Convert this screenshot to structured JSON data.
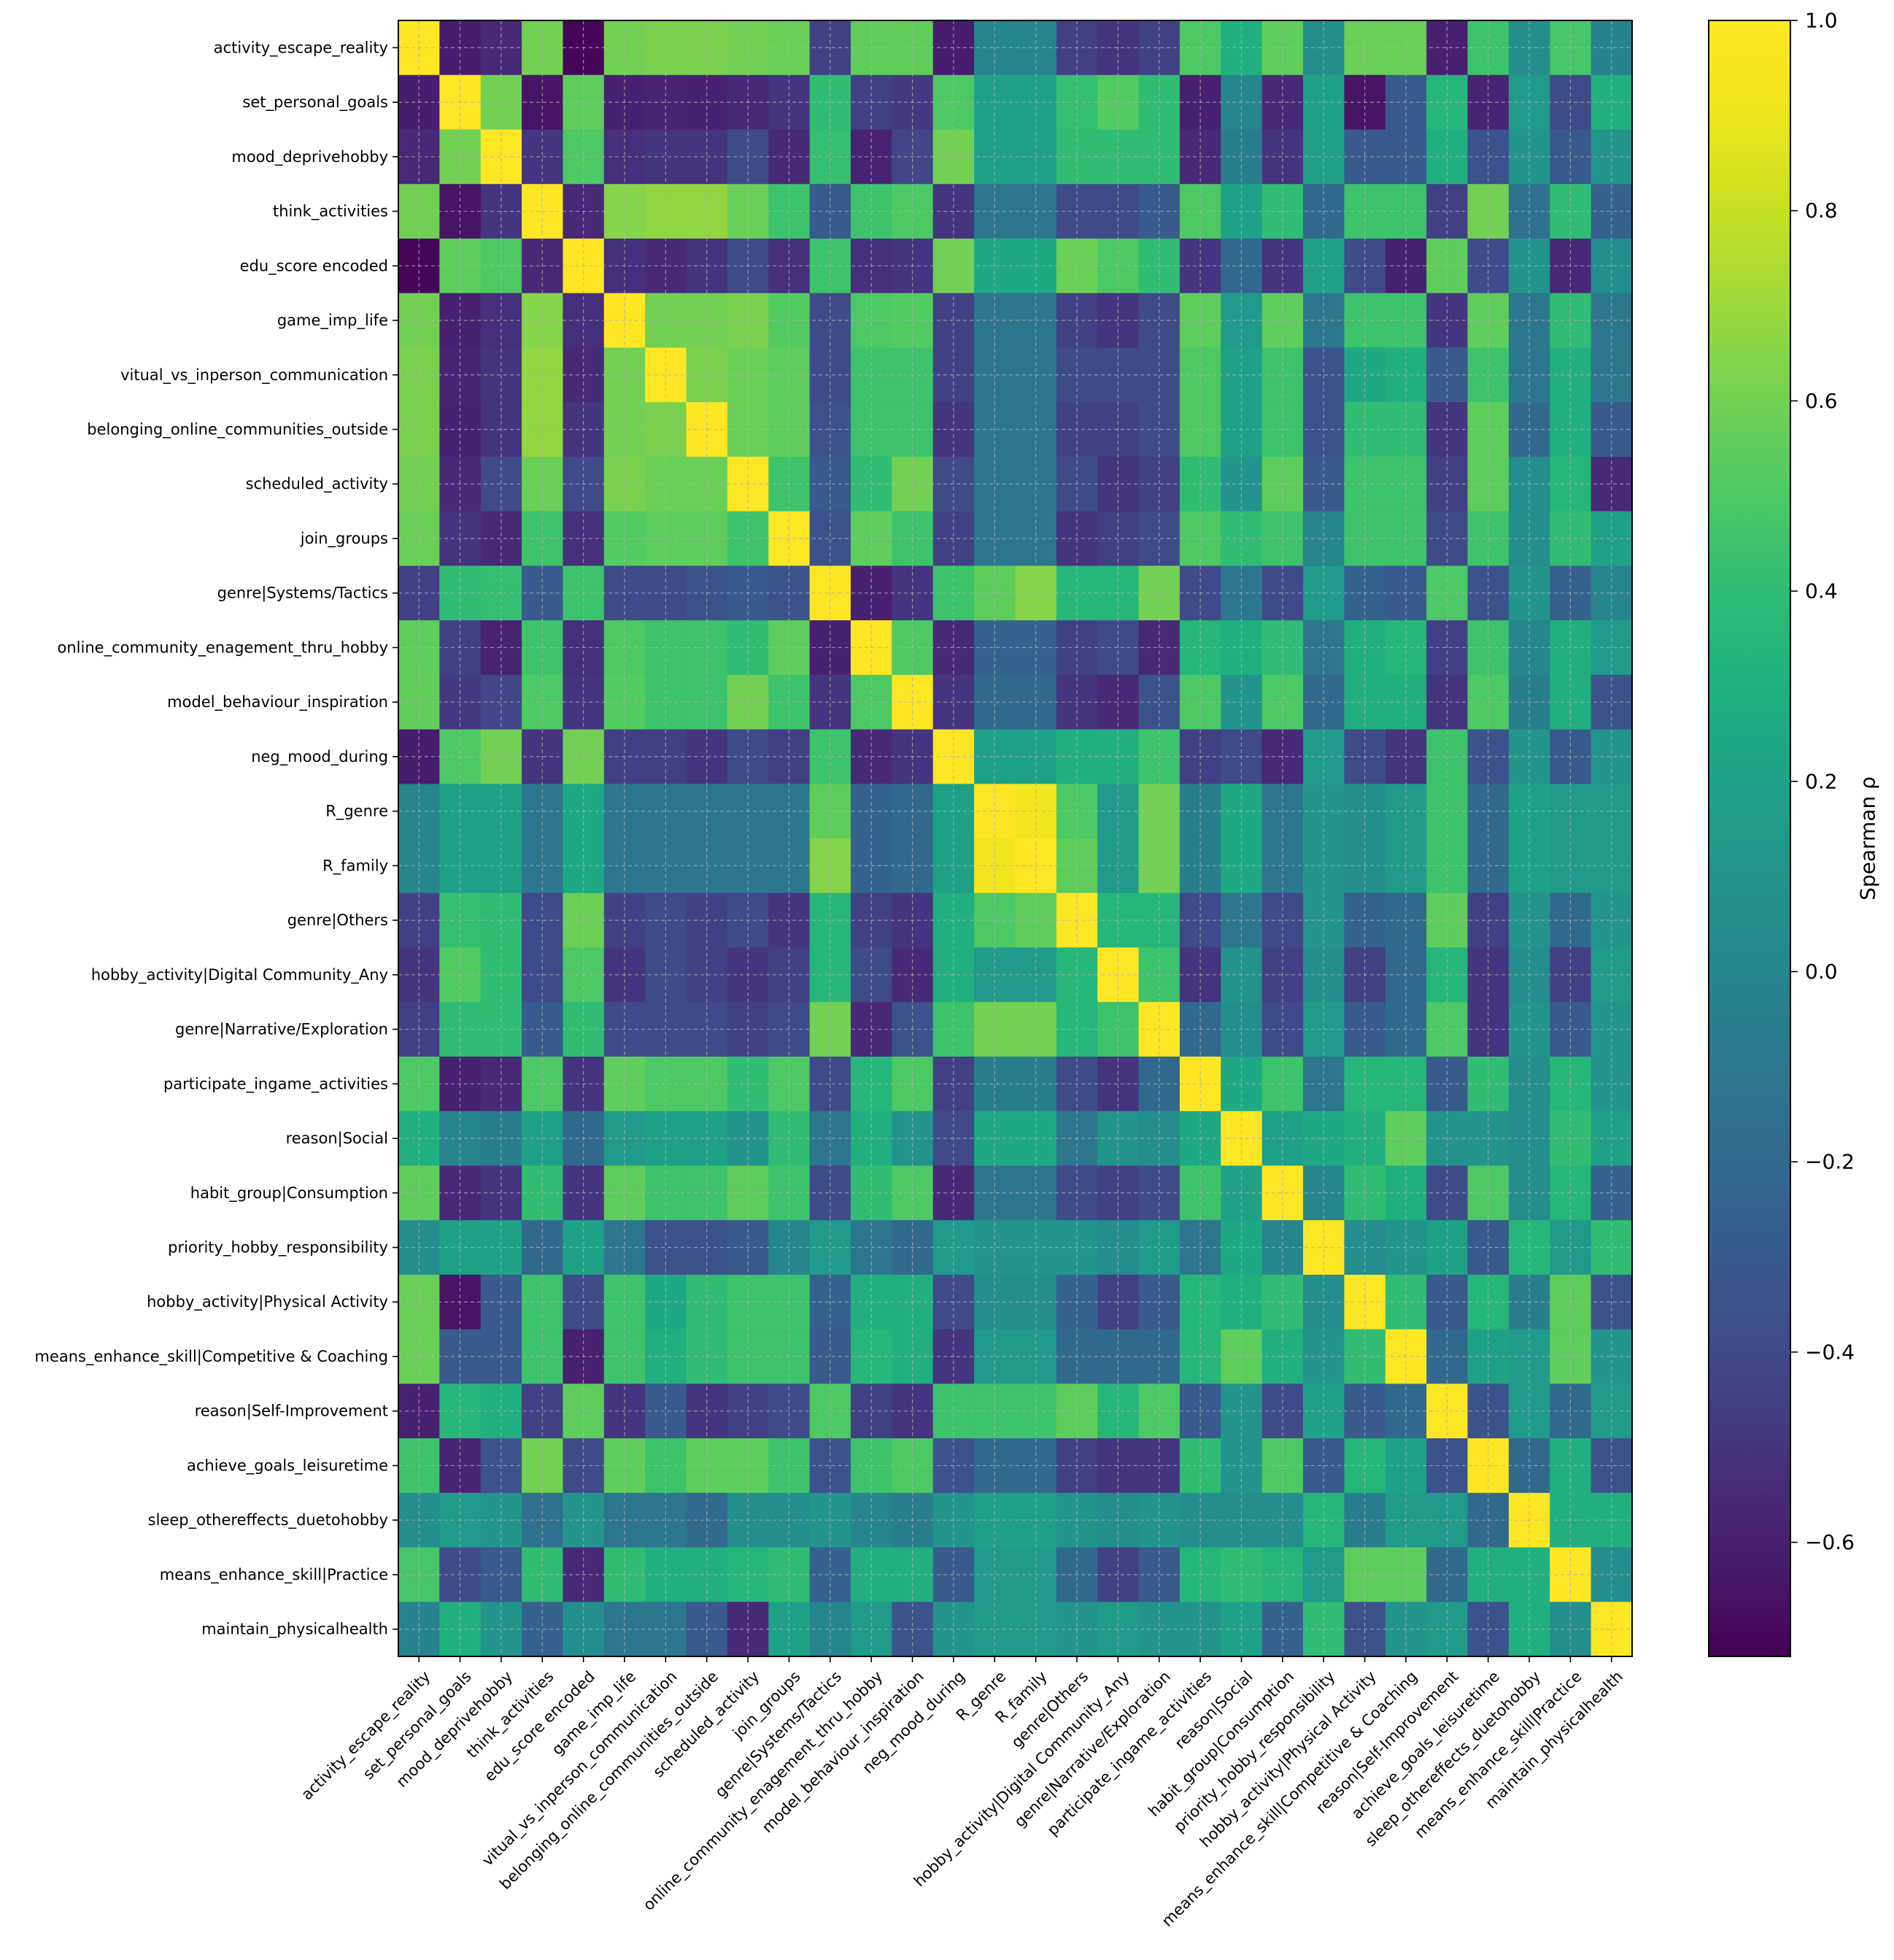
{
  "chart_data": {
    "type": "heatmap",
    "title": "",
    "labels": [
      "activity_escape_reality",
      "set_personal_goals",
      "mood_deprivehobby",
      "think_activities",
      "edu_score encoded",
      "game_imp_life",
      "vitual_vs_inperson_communication",
      "belonging_online_communities_outside",
      "scheduled_activity",
      "join_groups",
      "genre|Systems/Tactics",
      "online_community_enagement_thru_hobby",
      "model_behaviour_inspiration",
      "neg_mood_during",
      "R_genre",
      "R_family",
      "genre|Others",
      "hobby_activity|Digital Community_Any",
      "genre|Narrative/Exploration",
      "participate_ingame_activities",
      "reason|Social",
      "habit_group|Consumption",
      "priority_hobby_responsibility",
      "hobby_activity|Physical Activity",
      "means_enhance_skill|Competitive & Coaching",
      "reason|Self-Improvement",
      "achieve_goals_leisuretime",
      "sleep_othereffects_duetohobby",
      "means_enhance_skill|Practice",
      "maintain_physicalhealth"
    ],
    "matrix": [
      [
        1.0,
        -0.62,
        -0.55,
        0.6,
        -0.7,
        0.6,
        0.62,
        0.62,
        0.6,
        0.58,
        -0.45,
        0.55,
        0.56,
        -0.62,
        0.0,
        0.0,
        -0.45,
        -0.5,
        -0.45,
        0.5,
        0.3,
        0.55,
        0.05,
        0.58,
        0.58,
        -0.6,
        0.45,
        0.05,
        0.48,
        -0.02
      ],
      [
        -0.62,
        1.0,
        0.6,
        -0.65,
        0.55,
        -0.6,
        -0.58,
        -0.6,
        -0.55,
        -0.5,
        0.4,
        -0.45,
        -0.48,
        0.5,
        0.2,
        0.2,
        0.42,
        0.52,
        0.4,
        -0.6,
        0.0,
        -0.55,
        0.2,
        -0.65,
        -0.3,
        0.35,
        -0.58,
        0.15,
        -0.4,
        0.3
      ],
      [
        -0.55,
        0.6,
        1.0,
        -0.5,
        0.5,
        -0.52,
        -0.5,
        -0.5,
        -0.4,
        -0.55,
        0.42,
        -0.58,
        -0.42,
        0.6,
        0.2,
        0.2,
        0.4,
        0.4,
        0.4,
        -0.55,
        -0.05,
        -0.5,
        0.2,
        -0.3,
        -0.3,
        0.3,
        -0.35,
        0.1,
        -0.3,
        0.1
      ],
      [
        0.6,
        -0.65,
        -0.5,
        1.0,
        -0.55,
        0.65,
        0.68,
        0.68,
        0.58,
        0.45,
        -0.3,
        0.45,
        0.5,
        -0.5,
        -0.1,
        -0.1,
        -0.4,
        -0.4,
        -0.3,
        0.5,
        0.2,
        0.4,
        -0.2,
        0.45,
        0.45,
        -0.45,
        0.6,
        -0.15,
        0.4,
        -0.25
      ],
      [
        -0.7,
        0.55,
        0.5,
        -0.55,
        1.0,
        -0.52,
        -0.55,
        -0.5,
        -0.4,
        -0.52,
        0.45,
        -0.52,
        -0.5,
        0.6,
        0.25,
        0.25,
        0.58,
        0.5,
        0.4,
        -0.5,
        -0.2,
        -0.5,
        0.2,
        -0.4,
        -0.6,
        0.55,
        -0.4,
        0.1,
        -0.55,
        0.05
      ],
      [
        0.6,
        -0.6,
        -0.52,
        0.65,
        -0.52,
        1.0,
        0.6,
        0.6,
        0.62,
        0.52,
        -0.4,
        0.5,
        0.52,
        -0.45,
        -0.1,
        -0.1,
        -0.45,
        -0.5,
        -0.4,
        0.55,
        0.15,
        0.55,
        -0.1,
        0.45,
        0.45,
        -0.5,
        0.55,
        -0.1,
        0.4,
        -0.1
      ],
      [
        0.62,
        -0.58,
        -0.5,
        0.68,
        -0.55,
        0.6,
        1.0,
        0.62,
        0.58,
        0.55,
        -0.4,
        0.45,
        0.45,
        -0.45,
        -0.1,
        -0.1,
        -0.4,
        -0.4,
        -0.4,
        0.5,
        0.2,
        0.45,
        -0.35,
        0.25,
        0.3,
        -0.3,
        0.45,
        -0.1,
        0.3,
        -0.1
      ],
      [
        0.62,
        -0.6,
        -0.5,
        0.68,
        -0.5,
        0.6,
        0.62,
        1.0,
        0.58,
        0.55,
        -0.35,
        0.45,
        0.45,
        -0.5,
        -0.1,
        -0.1,
        -0.45,
        -0.45,
        -0.4,
        0.5,
        0.2,
        0.45,
        -0.35,
        0.4,
        0.4,
        -0.5,
        0.55,
        -0.2,
        0.3,
        -0.3
      ],
      [
        0.6,
        -0.55,
        -0.4,
        0.58,
        -0.4,
        0.62,
        0.58,
        0.58,
        1.0,
        0.45,
        -0.3,
        0.4,
        0.6,
        -0.4,
        -0.1,
        -0.1,
        -0.4,
        -0.5,
        -0.45,
        0.4,
        0.1,
        0.55,
        -0.3,
        0.45,
        0.45,
        -0.45,
        0.55,
        0.05,
        0.35,
        -0.55
      ],
      [
        0.58,
        -0.5,
        -0.55,
        0.45,
        -0.52,
        0.52,
        0.55,
        0.55,
        0.45,
        1.0,
        -0.35,
        0.55,
        0.45,
        -0.45,
        -0.1,
        -0.1,
        -0.5,
        -0.45,
        -0.4,
        0.5,
        0.4,
        0.45,
        0.0,
        0.45,
        0.45,
        -0.4,
        0.45,
        0.05,
        0.4,
        0.2
      ],
      [
        -0.45,
        0.4,
        0.42,
        -0.3,
        0.45,
        -0.4,
        -0.4,
        -0.35,
        -0.3,
        -0.35,
        1.0,
        -0.6,
        -0.5,
        0.45,
        0.55,
        0.65,
        0.35,
        0.35,
        0.6,
        -0.4,
        -0.1,
        -0.4,
        0.15,
        -0.25,
        -0.3,
        0.5,
        -0.35,
        0.1,
        -0.25,
        0.0
      ],
      [
        0.55,
        -0.45,
        -0.58,
        0.45,
        -0.52,
        0.5,
        0.45,
        0.45,
        0.4,
        0.55,
        -0.6,
        1.0,
        0.5,
        -0.55,
        -0.25,
        -0.25,
        -0.45,
        -0.4,
        -0.55,
        0.35,
        0.3,
        0.4,
        -0.1,
        0.3,
        0.35,
        -0.45,
        0.45,
        0.0,
        0.3,
        0.15
      ],
      [
        0.56,
        -0.48,
        -0.42,
        0.5,
        -0.5,
        0.52,
        0.45,
        0.45,
        0.6,
        0.45,
        -0.5,
        0.5,
        1.0,
        -0.5,
        -0.2,
        -0.2,
        -0.5,
        -0.55,
        -0.35,
        0.5,
        0.1,
        0.5,
        -0.2,
        0.3,
        0.3,
        -0.5,
        0.5,
        -0.05,
        0.3,
        -0.35
      ],
      [
        -0.62,
        0.5,
        0.6,
        -0.5,
        0.6,
        -0.45,
        -0.45,
        -0.5,
        -0.4,
        -0.45,
        0.45,
        -0.55,
        -0.5,
        1.0,
        0.2,
        0.2,
        0.3,
        0.3,
        0.45,
        -0.45,
        -0.4,
        -0.55,
        0.15,
        -0.4,
        -0.5,
        0.45,
        -0.35,
        0.1,
        -0.3,
        0.1
      ],
      [
        0.0,
        0.2,
        0.2,
        -0.1,
        0.25,
        -0.1,
        -0.1,
        -0.1,
        -0.1,
        -0.1,
        0.55,
        -0.25,
        -0.2,
        0.2,
        1.0,
        0.92,
        0.5,
        0.15,
        0.6,
        -0.05,
        0.25,
        -0.1,
        0.1,
        0.05,
        0.15,
        0.45,
        -0.2,
        0.2,
        0.15,
        0.15
      ],
      [
        0.0,
        0.2,
        0.2,
        -0.1,
        0.25,
        -0.1,
        -0.1,
        -0.1,
        -0.1,
        -0.1,
        0.65,
        -0.25,
        -0.2,
        0.2,
        0.92,
        1.0,
        0.55,
        0.15,
        0.6,
        -0.05,
        0.25,
        -0.1,
        0.1,
        0.05,
        0.15,
        0.45,
        -0.2,
        0.2,
        0.15,
        0.15
      ],
      [
        -0.45,
        0.42,
        0.4,
        -0.4,
        0.58,
        -0.45,
        -0.4,
        -0.45,
        -0.4,
        -0.5,
        0.35,
        -0.45,
        -0.5,
        0.3,
        0.5,
        0.55,
        1.0,
        0.35,
        0.35,
        -0.4,
        -0.1,
        -0.4,
        0.1,
        -0.25,
        -0.2,
        0.55,
        -0.45,
        0.1,
        -0.2,
        0.1
      ],
      [
        -0.5,
        0.52,
        0.4,
        -0.4,
        0.5,
        -0.5,
        -0.4,
        -0.45,
        -0.5,
        -0.45,
        0.35,
        -0.4,
        -0.55,
        0.3,
        0.15,
        0.15,
        0.35,
        1.0,
        0.45,
        -0.5,
        0.1,
        -0.45,
        0.05,
        -0.45,
        -0.2,
        0.35,
        -0.5,
        0.05,
        -0.45,
        0.15
      ],
      [
        -0.45,
        0.4,
        0.4,
        -0.3,
        0.4,
        -0.4,
        -0.4,
        -0.4,
        -0.45,
        -0.4,
        0.6,
        -0.55,
        -0.35,
        0.45,
        0.6,
        0.6,
        0.35,
        0.45,
        1.0,
        -0.2,
        0.05,
        -0.4,
        0.15,
        -0.3,
        -0.2,
        0.5,
        -0.5,
        0.1,
        -0.3,
        0.1
      ],
      [
        0.5,
        -0.6,
        -0.55,
        0.5,
        -0.5,
        0.55,
        0.5,
        0.5,
        0.4,
        0.5,
        -0.4,
        0.35,
        0.5,
        -0.45,
        -0.05,
        -0.05,
        -0.4,
        -0.5,
        -0.2,
        1.0,
        0.25,
        0.45,
        -0.1,
        0.35,
        0.35,
        -0.3,
        0.4,
        0.05,
        0.35,
        0.1
      ],
      [
        0.3,
        0.0,
        -0.05,
        0.2,
        -0.2,
        0.15,
        0.2,
        0.2,
        0.1,
        0.4,
        -0.1,
        0.3,
        0.1,
        -0.4,
        0.25,
        0.25,
        -0.1,
        0.1,
        0.05,
        0.25,
        1.0,
        0.2,
        0.25,
        0.3,
        0.55,
        0.1,
        0.1,
        0.05,
        0.4,
        0.2
      ],
      [
        0.55,
        -0.55,
        -0.5,
        0.4,
        -0.5,
        0.55,
        0.45,
        0.45,
        0.55,
        0.45,
        -0.4,
        0.4,
        0.5,
        -0.55,
        -0.1,
        -0.1,
        -0.4,
        -0.45,
        -0.4,
        0.45,
        0.2,
        1.0,
        0.0,
        0.4,
        0.3,
        -0.4,
        0.5,
        0.05,
        0.35,
        -0.25
      ],
      [
        0.05,
        0.2,
        0.2,
        -0.2,
        0.2,
        -0.1,
        -0.35,
        -0.35,
        -0.3,
        0.0,
        0.15,
        -0.1,
        -0.2,
        0.15,
        0.1,
        0.1,
        0.1,
        0.05,
        0.15,
        -0.1,
        0.25,
        0.0,
        1.0,
        0.05,
        0.1,
        0.2,
        -0.3,
        0.35,
        0.15,
        0.4
      ],
      [
        0.58,
        -0.65,
        -0.3,
        0.45,
        -0.4,
        0.45,
        0.25,
        0.4,
        0.45,
        0.45,
        -0.25,
        0.3,
        0.3,
        -0.4,
        0.05,
        0.05,
        -0.25,
        -0.45,
        -0.3,
        0.35,
        0.3,
        0.4,
        0.05,
        1.0,
        0.4,
        -0.3,
        0.35,
        -0.05,
        0.55,
        -0.35
      ],
      [
        0.58,
        -0.3,
        -0.3,
        0.45,
        -0.6,
        0.45,
        0.3,
        0.4,
        0.45,
        0.45,
        -0.3,
        0.35,
        0.3,
        -0.5,
        0.15,
        0.15,
        -0.2,
        -0.2,
        -0.2,
        0.35,
        0.55,
        0.3,
        0.1,
        0.4,
        1.0,
        -0.2,
        0.2,
        0.15,
        0.55,
        0.1
      ],
      [
        -0.6,
        0.35,
        0.3,
        -0.45,
        0.55,
        -0.5,
        -0.3,
        -0.5,
        -0.45,
        -0.4,
        0.5,
        -0.45,
        -0.5,
        0.45,
        0.45,
        0.45,
        0.55,
        0.35,
        0.5,
        -0.3,
        0.1,
        -0.4,
        0.2,
        -0.3,
        -0.2,
        1.0,
        -0.35,
        0.15,
        -0.2,
        0.15
      ],
      [
        0.45,
        -0.58,
        -0.35,
        0.6,
        -0.4,
        0.55,
        0.45,
        0.55,
        0.55,
        0.45,
        -0.35,
        0.45,
        0.5,
        -0.35,
        -0.2,
        -0.2,
        -0.45,
        -0.5,
        -0.5,
        0.4,
        0.1,
        0.5,
        -0.3,
        0.35,
        0.2,
        -0.35,
        1.0,
        -0.2,
        0.3,
        -0.35
      ],
      [
        0.05,
        0.15,
        0.1,
        -0.15,
        0.1,
        -0.1,
        -0.1,
        -0.2,
        0.05,
        0.05,
        0.1,
        0.0,
        -0.05,
        0.1,
        0.2,
        0.2,
        0.1,
        0.05,
        0.1,
        0.05,
        0.05,
        0.05,
        0.35,
        -0.05,
        0.15,
        0.15,
        -0.2,
        1.0,
        0.3,
        0.3
      ],
      [
        0.48,
        -0.4,
        -0.3,
        0.4,
        -0.55,
        0.4,
        0.3,
        0.3,
        0.35,
        0.4,
        -0.25,
        0.3,
        0.3,
        -0.3,
        0.15,
        0.15,
        -0.2,
        -0.45,
        -0.3,
        0.35,
        0.4,
        0.35,
        0.15,
        0.55,
        0.55,
        -0.2,
        0.3,
        0.3,
        1.0,
        0.05
      ],
      [
        -0.02,
        0.3,
        0.1,
        -0.25,
        0.05,
        -0.1,
        -0.1,
        -0.3,
        -0.55,
        0.2,
        0.0,
        0.15,
        -0.35,
        0.1,
        0.15,
        0.15,
        0.1,
        0.15,
        0.1,
        0.1,
        0.2,
        -0.25,
        0.4,
        -0.35,
        0.1,
        0.15,
        -0.35,
        0.3,
        0.05,
        1.0
      ]
    ],
    "colormap": "viridis",
    "vmin": -0.72,
    "vmax": 1.0,
    "colorbar": {
      "label": "Spearman ρ",
      "ticks": [
        1.0,
        0.8,
        0.6,
        0.4,
        0.2,
        0.0,
        -0.2,
        -0.4,
        -0.6
      ],
      "tick_labels": [
        "1.0",
        "0.8",
        "0.6",
        "0.4",
        "0.2",
        "0.0",
        "−0.2",
        "−0.4",
        "−0.6"
      ]
    },
    "grid": true
  }
}
